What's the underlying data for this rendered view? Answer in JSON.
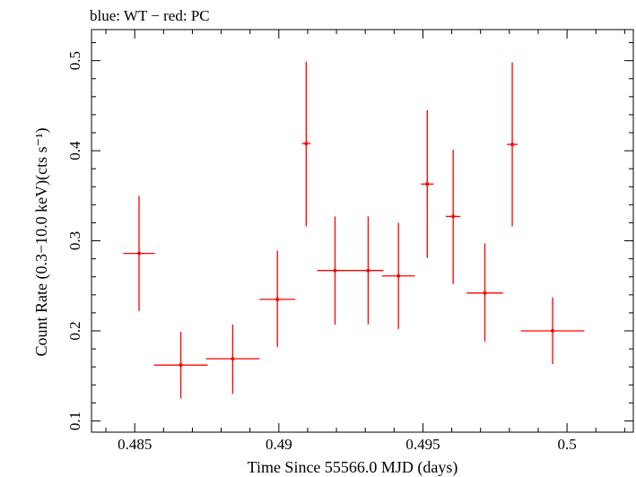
{
  "chart_data": {
    "type": "scatter",
    "title": "blue: WT − red: PC",
    "xlabel": "Time Since 55566.0 MJD (days)",
    "ylabel": "Count Rate (0.3−10.0 keV)(cts s⁻¹)",
    "xlim": [
      0.4835,
      0.5023
    ],
    "ylim": [
      0.0875,
      0.5345
    ],
    "x_ticks": [
      0.485,
      0.49,
      0.495,
      0.5
    ],
    "x_tick_labels": [
      "0.485",
      "0.49",
      "0.495",
      "0.5"
    ],
    "y_ticks": [
      0.1,
      0.2,
      0.3,
      0.4,
      0.5
    ],
    "y_tick_labels": [
      "0.1",
      "0.2",
      "0.3",
      "0.4",
      "0.5"
    ],
    "grid": false,
    "colors": {
      "PC": "#ff0000",
      "WT": "#0000ff"
    },
    "series": [
      {
        "name": "PC",
        "points": [
          {
            "x": 0.48515,
            "xerr": 0.00055,
            "y": 0.286,
            "ylo": 0.222,
            "yhi": 0.35
          },
          {
            "x": 0.4866,
            "xerr": 0.00093,
            "y": 0.162,
            "ylo": 0.125,
            "yhi": 0.199
          },
          {
            "x": 0.4884,
            "xerr": 0.00093,
            "y": 0.169,
            "ylo": 0.13,
            "yhi": 0.207
          },
          {
            "x": 0.48995,
            "xerr": 0.00062,
            "y": 0.235,
            "ylo": 0.182,
            "yhi": 0.289
          },
          {
            "x": 0.49095,
            "xerr": 0.00015,
            "y": 0.408,
            "ylo": 0.316,
            "yhi": 0.499
          },
          {
            "x": 0.49195,
            "xerr": 0.00062,
            "y": 0.267,
            "ylo": 0.207,
            "yhi": 0.327
          },
          {
            "x": 0.4931,
            "xerr": 0.00053,
            "y": 0.267,
            "ylo": 0.207,
            "yhi": 0.327
          },
          {
            "x": 0.49415,
            "xerr": 0.00057,
            "y": 0.261,
            "ylo": 0.202,
            "yhi": 0.32
          },
          {
            "x": 0.49515,
            "xerr": 0.00022,
            "y": 0.363,
            "ylo": 0.281,
            "yhi": 0.445
          },
          {
            "x": 0.49605,
            "xerr": 0.00025,
            "y": 0.327,
            "ylo": 0.252,
            "yhi": 0.401
          },
          {
            "x": 0.49715,
            "xerr": 0.00063,
            "y": 0.242,
            "ylo": 0.188,
            "yhi": 0.297
          },
          {
            "x": 0.4981,
            "xerr": 0.00019,
            "y": 0.407,
            "ylo": 0.316,
            "yhi": 0.498
          },
          {
            "x": 0.4995,
            "xerr": 0.0011,
            "y": 0.2,
            "ylo": 0.163,
            "yhi": 0.237
          }
        ]
      }
    ]
  }
}
